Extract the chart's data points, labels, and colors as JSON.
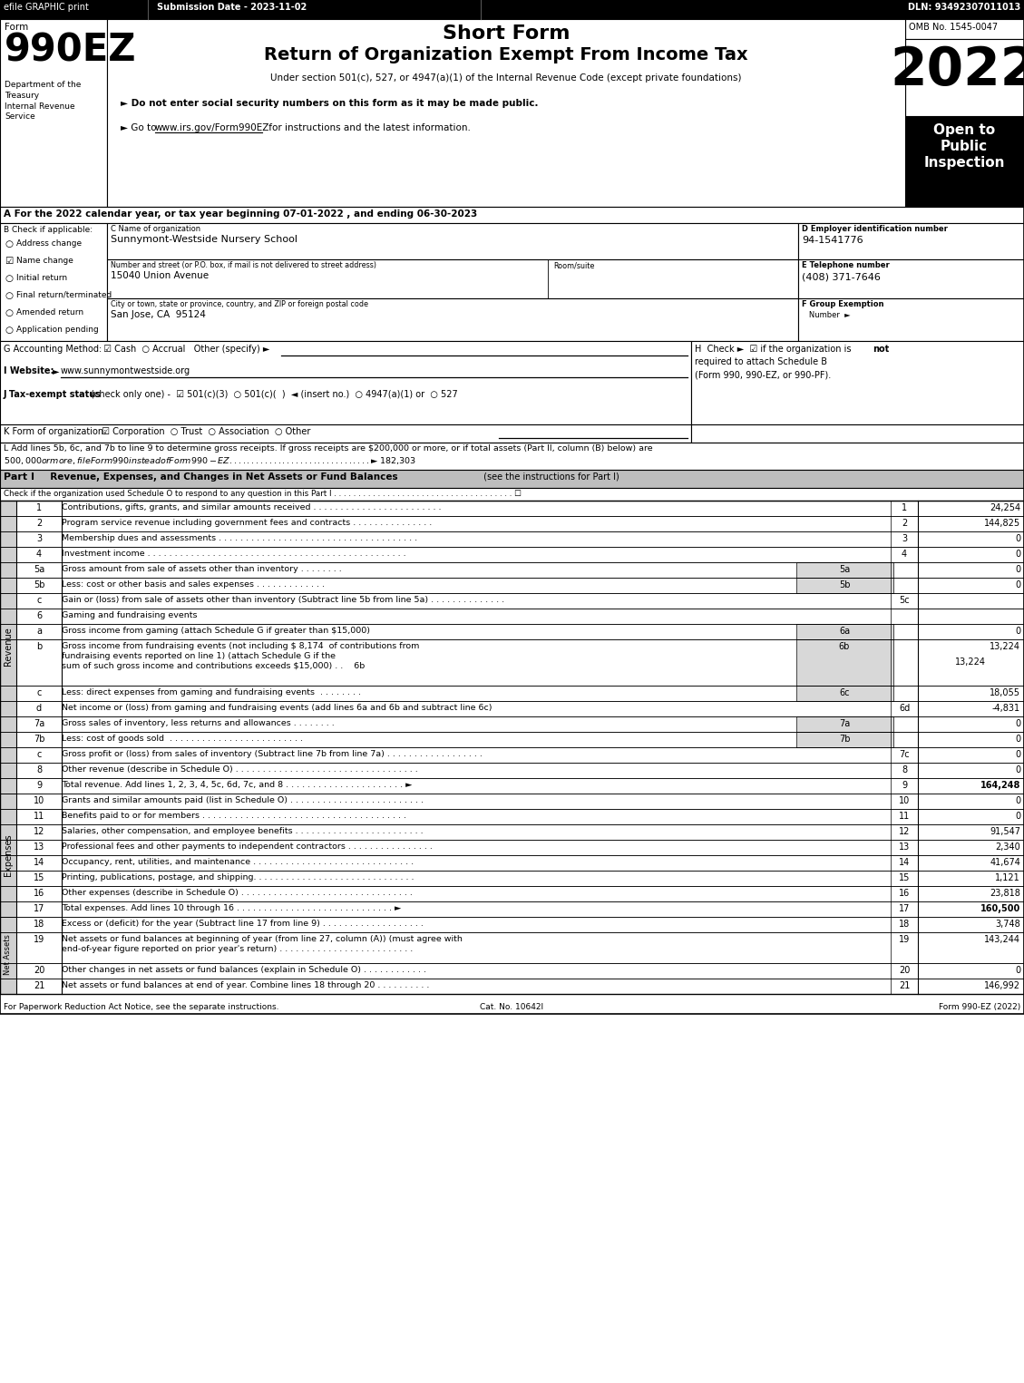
{
  "title_short_form": "Short Form",
  "title_main": "Return of Organization Exempt From Income Tax",
  "subtitle": "Under section 501(c), 527, or 4947(a)(1) of the Internal Revenue Code (except private foundations)",
  "form_number": "990EZ",
  "form_label": "Form",
  "year": "2022",
  "omb": "OMB No. 1545-0047",
  "efile": "efile GRAPHIC print",
  "submission_date": "Submission Date - 2023-11-02",
  "dln": "DLN: 93492307011013",
  "bullet1": "► Do not enter social security numbers on this form as it may be made public.",
  "bullet2": "► Go to www.irs.gov/Form990EZ for instructions and the latest information.",
  "website_url": "www.irs.gov/Form990EZ",
  "section_a": "A For the 2022 calendar year, or tax year beginning 07-01-2022 , and ending 06-30-2023",
  "checkboxes_b": [
    {
      "label": "Address change",
      "checked": false
    },
    {
      "label": "Name change",
      "checked": true
    },
    {
      "label": "Initial return",
      "checked": false
    },
    {
      "label": "Final return/terminated",
      "checked": false
    },
    {
      "label": "Amended return",
      "checked": false
    },
    {
      "label": "Application pending",
      "checked": false
    }
  ],
  "org_name": "Sunnymont-Westside Nursery School",
  "street_address": "15040 Union Avenue",
  "city_address": "San Jose, CA  95124",
  "ein": "94-1541776",
  "phone": "(408) 371-7646",
  "footer_left": "For Paperwork Reduction Act Notice, see the separate instructions.",
  "footer_cat": "Cat. No. 10642I",
  "footer_right": "Form 990-EZ (2022)",
  "bg_color": "#ffffff"
}
